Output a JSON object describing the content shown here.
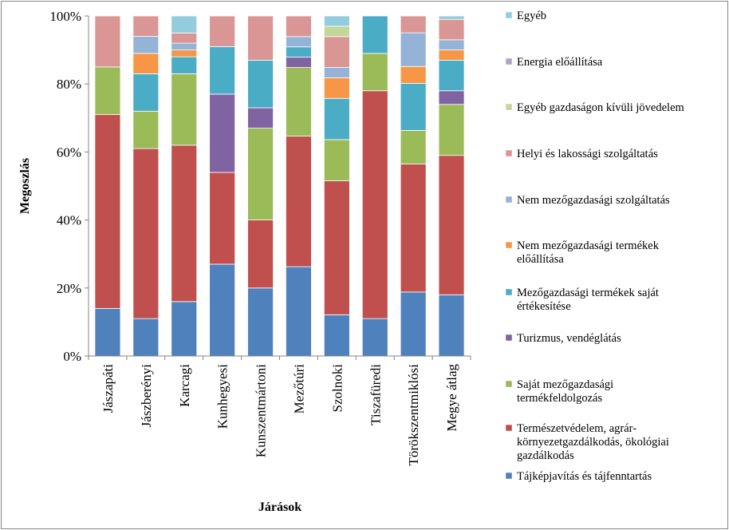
{
  "chart_data": {
    "type": "bar",
    "stacked": true,
    "percent": true,
    "title": "",
    "xlabel": "Járások",
    "ylabel": "Megoszlás",
    "ylim": [
      0,
      100
    ],
    "yticks": [
      "0%",
      "20%",
      "40%",
      "60%",
      "80%",
      "100%"
    ],
    "grid": false,
    "legend_position": "right",
    "categories": [
      "Jászapáti",
      "Jászberényi",
      "Karcagi",
      "Kunhegyesi",
      "Kunszentmártoni",
      "Mezőtúri",
      "Szolnoki",
      "Tiszafüredi",
      "Törökszentmiklósi",
      "Megye átlag"
    ],
    "series": [
      {
        "name": "Tájképjavítás és tájfenntartás",
        "color": "#4F81BD",
        "values": [
          14,
          11,
          16,
          27,
          20,
          26,
          12,
          11,
          19,
          18
        ]
      },
      {
        "name": "Természetvédelem, agrár-környezetgazdálkodás, ökológiai gazdálkodás",
        "color": "#C0504D",
        "values": [
          57,
          50,
          46,
          27,
          20,
          38,
          39,
          67,
          38,
          41
        ]
      },
      {
        "name": "Saját mezőgazdasági termékfeldolgozás",
        "color": "#9BBB59",
        "values": [
          14,
          11,
          21,
          0,
          27,
          20,
          12,
          11,
          10,
          15
        ]
      },
      {
        "name": "Turizmus, vendéglátás",
        "color": "#8064A2",
        "values": [
          0,
          0,
          0,
          23,
          6,
          3,
          0,
          0,
          0,
          4
        ]
      },
      {
        "name": "Mezőgazdasági termékek saját értékesítése",
        "color": "#4BACC6",
        "values": [
          0,
          11,
          5,
          14,
          14,
          3,
          12,
          11,
          14,
          9
        ]
      },
      {
        "name": "Nem mezőgazdasági termékek előállítása",
        "color": "#F79646",
        "values": [
          0,
          6,
          2,
          0,
          0,
          0,
          6,
          0,
          5,
          3
        ]
      },
      {
        "name": "Nem mezőgazdasági szolgáltatás",
        "color": "#95B3D7",
        "values": [
          0,
          5,
          2,
          0,
          0,
          3,
          3,
          0,
          10,
          3
        ]
      },
      {
        "name": "Helyi és lakossági szolgáltatás",
        "color": "#D99694",
        "values": [
          15,
          6,
          3,
          9,
          13,
          6,
          9,
          0,
          5,
          6
        ]
      },
      {
        "name": "Egyéb gazdaságon kívüli jövedelem",
        "color": "#C3D69B",
        "values": [
          0,
          0,
          0,
          0,
          0,
          0,
          3,
          0,
          0,
          0
        ]
      },
      {
        "name": "Energia előállítása",
        "color": "#B3A2C7",
        "values": [
          0,
          0,
          0,
          0,
          0,
          0,
          0,
          0,
          0,
          0
        ]
      },
      {
        "name": "Egyéb",
        "color": "#93CDDD",
        "values": [
          0,
          0,
          5,
          0,
          0,
          0,
          3,
          0,
          0,
          1
        ]
      }
    ],
    "legend_order": [
      10,
      9,
      8,
      7,
      6,
      5,
      4,
      3,
      2,
      1,
      0
    ],
    "legend_lines": [
      [
        "Egyéb"
      ],
      [
        "Energia előállítása"
      ],
      [
        "Egyéb gazdaságon kívüli jövedelem"
      ],
      [
        "Helyi és lakossági szolgáltatás"
      ],
      [
        "Nem mezőgazdasági szolgáltatás"
      ],
      [
        "Nem mezőgazdasági termékek",
        "előállítása"
      ],
      [
        "Mezőgazdasági termékek saját",
        "értékesítése"
      ],
      [
        "Turizmus, vendéglátás"
      ],
      [
        "Saját mezőgazdasági",
        "termékfeldolgozás"
      ],
      [
        "Természetvédelem, agrár-",
        "környezetgazdálkodás, ökológiai",
        "gazdálkodás"
      ],
      [
        "Tájképjavítás és tájfenntartás"
      ]
    ]
  }
}
